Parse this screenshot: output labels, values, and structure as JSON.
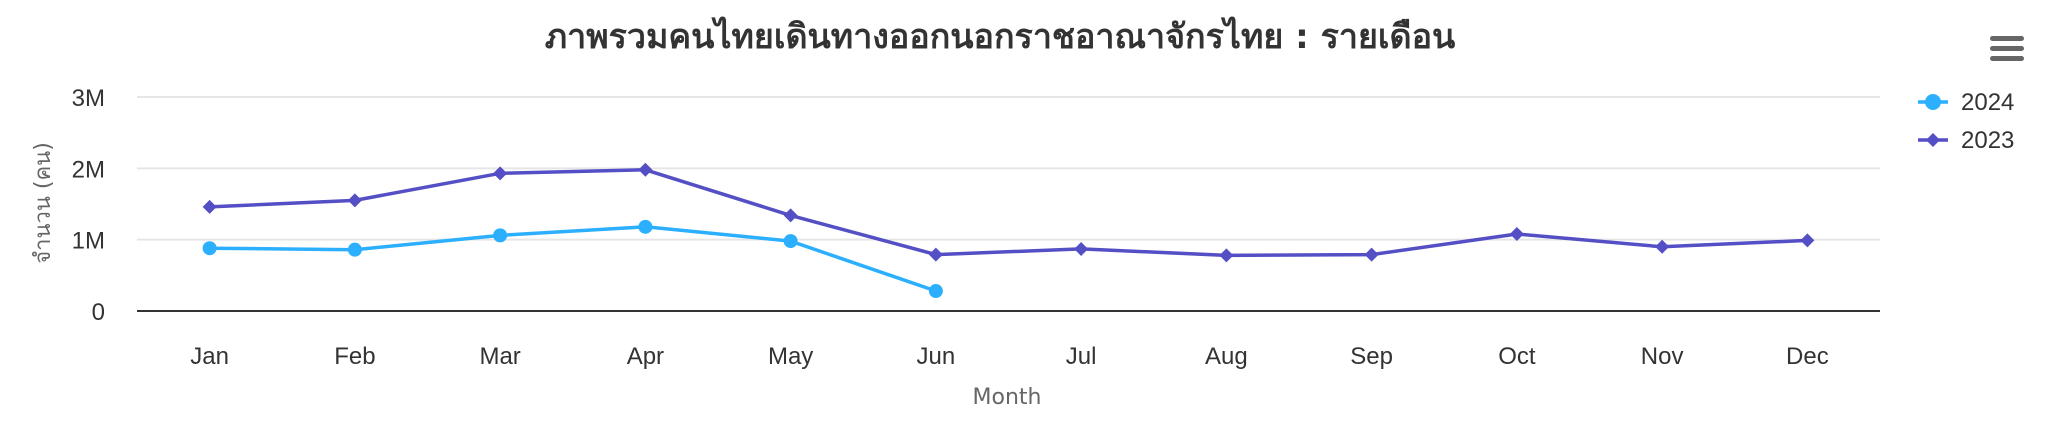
{
  "menu": {
    "icon": "hamburger-menu-icon"
  },
  "chart_data": {
    "type": "line",
    "title": "ภาพรวมคนไทยเดินทางออกนอกราชอาณาจักรไทย : รายเดือน",
    "xlabel": "Month",
    "ylabel": "จำนวน (คน)",
    "categories": [
      "Jan",
      "Feb",
      "Mar",
      "Apr",
      "May",
      "Jun",
      "Jul",
      "Aug",
      "Sep",
      "Oct",
      "Nov",
      "Dec"
    ],
    "y_ticks": [
      {
        "value": 0,
        "label": "0"
      },
      {
        "value": 1000000,
        "label": "1M"
      },
      {
        "value": 2000000,
        "label": "2M"
      },
      {
        "value": 3000000,
        "label": "3M"
      }
    ],
    "ylim": [
      0,
      3000000
    ],
    "grid": true,
    "legend_position": "top-right",
    "series": [
      {
        "name": "2024",
        "color": "#2caffe",
        "marker": "circle",
        "values": [
          880000,
          860000,
          1060000,
          1180000,
          980000,
          280000,
          null,
          null,
          null,
          null,
          null,
          null
        ]
      },
      {
        "name": "2023",
        "color": "#544fc5",
        "marker": "diamond",
        "values": [
          1460000,
          1550000,
          1930000,
          1980000,
          1340000,
          790000,
          870000,
          780000,
          790000,
          1080000,
          900000,
          990000
        ]
      }
    ]
  }
}
